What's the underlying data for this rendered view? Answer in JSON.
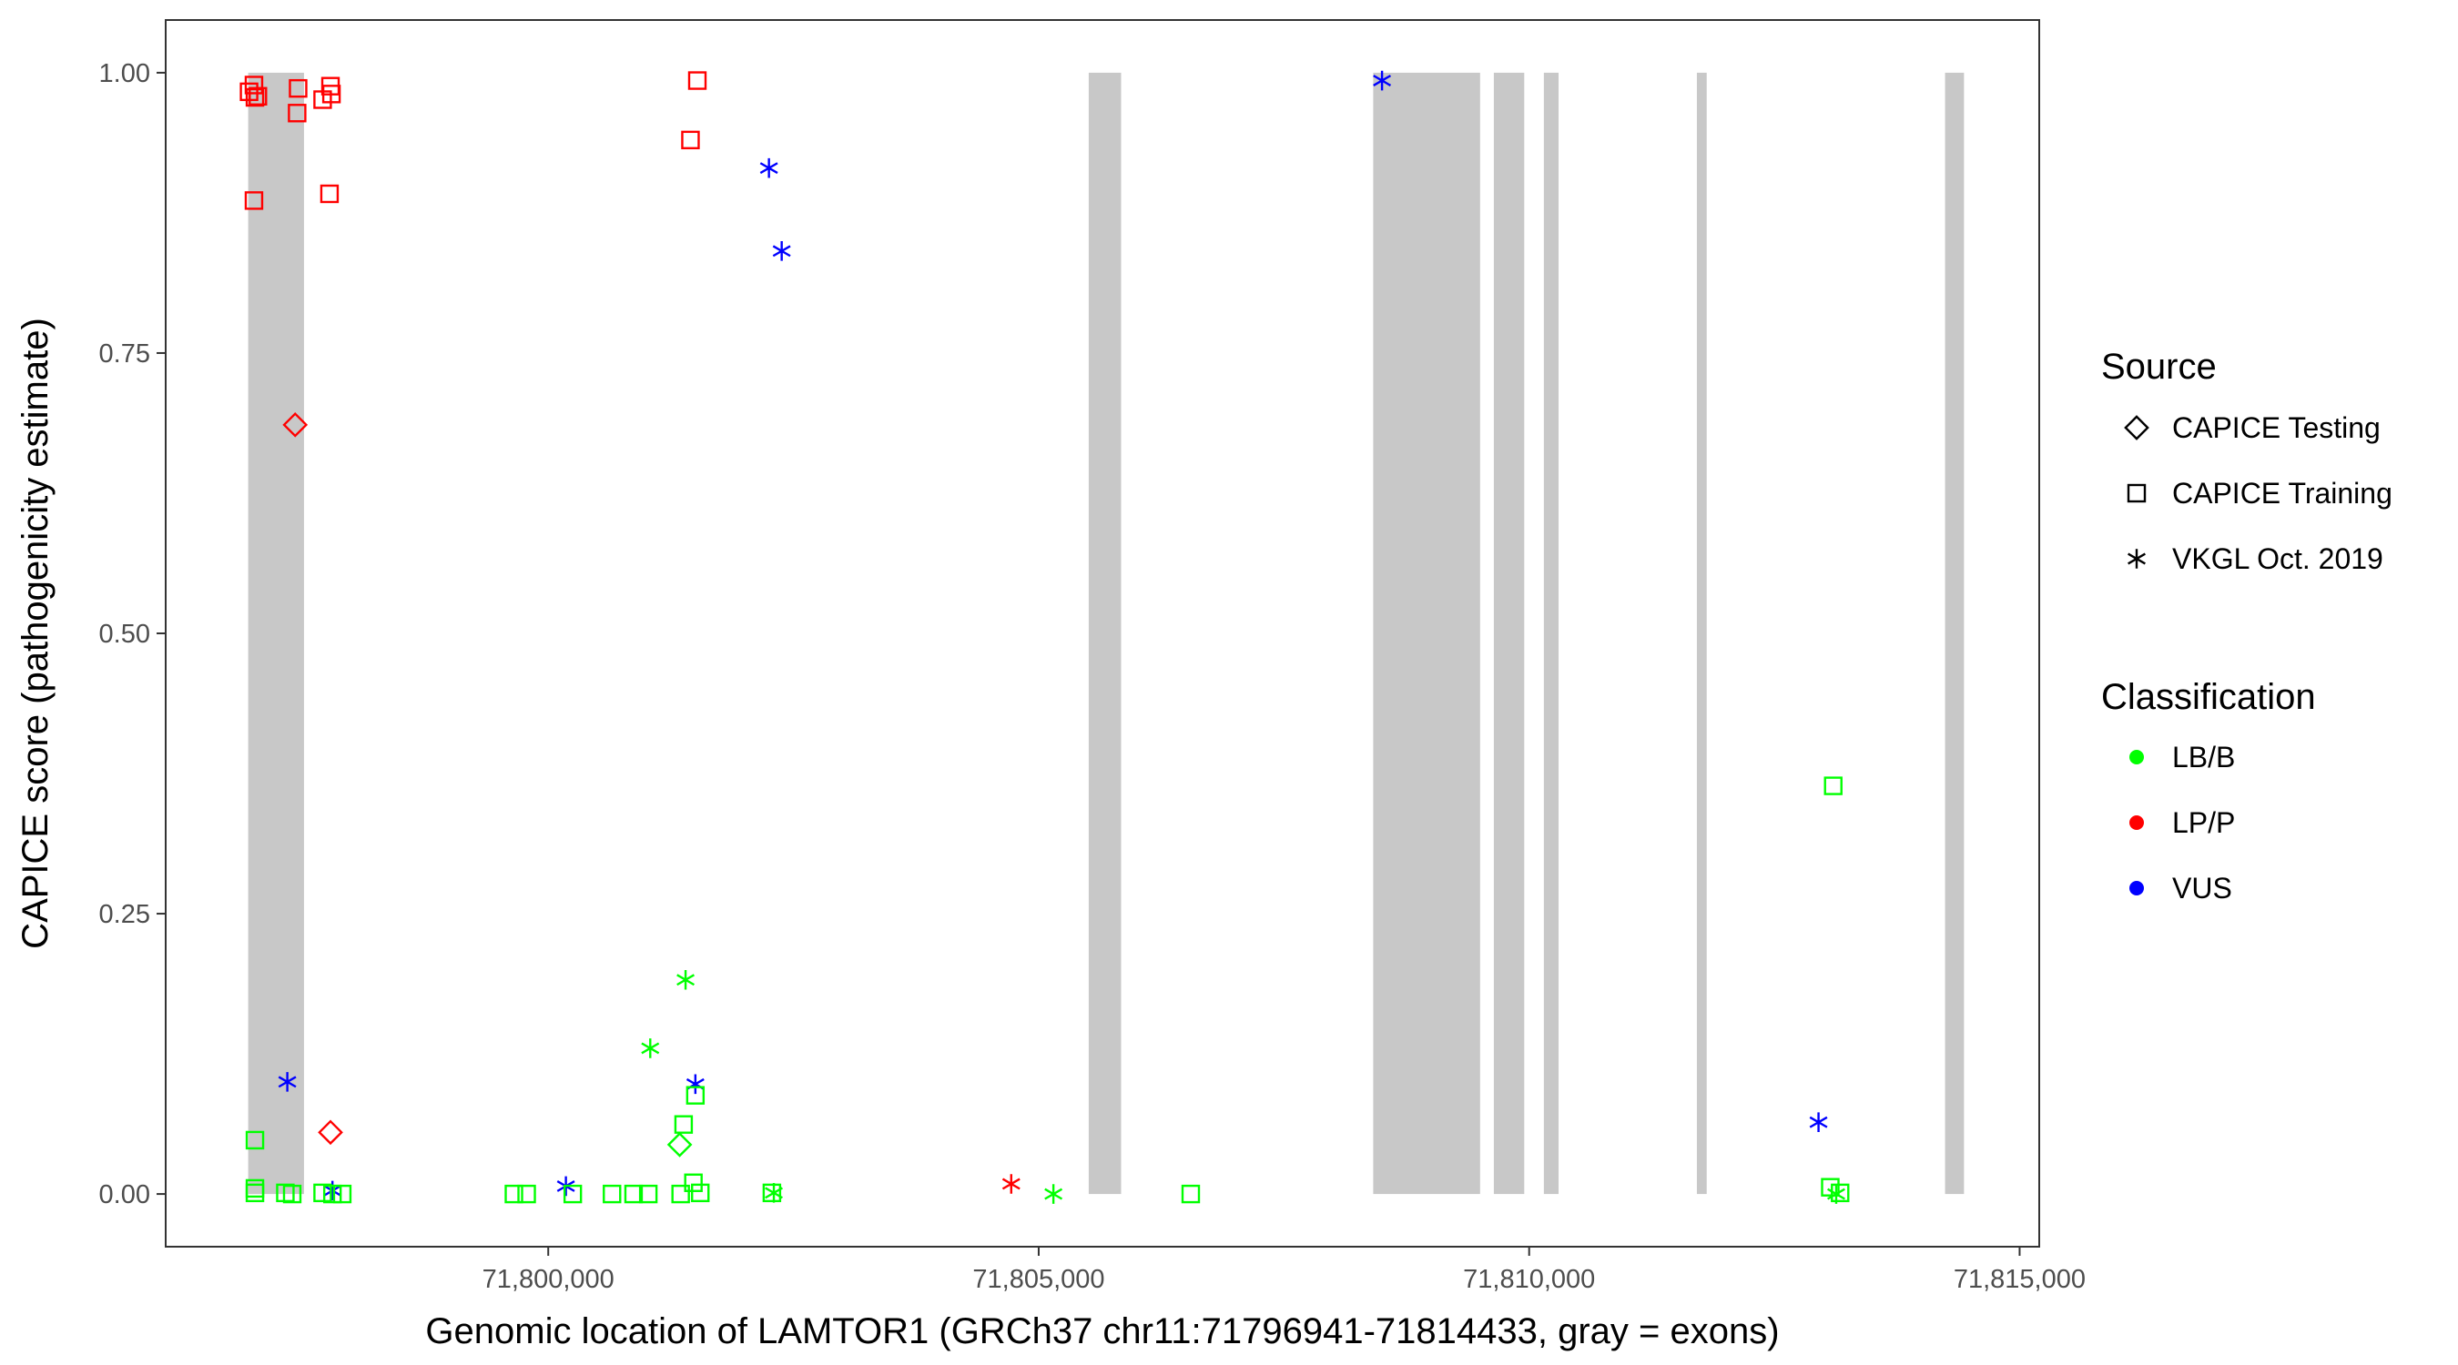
{
  "chart_data": {
    "type": "scatter",
    "title": "",
    "xlabel": "Genomic location of LAMTOR1 (GRCh37 chr11:71796941-71814433, gray = exons)",
    "ylabel": "CAPICE score (pathogenicity estimate)",
    "xlim": [
      71796100,
      71815200
    ],
    "ylim": [
      -0.047,
      1.047
    ],
    "x_ticks": [
      71800000,
      71805000,
      71810000,
      71815000
    ],
    "x_tick_labels": [
      "71,800,000",
      "71,805,000",
      "71,810,000",
      "71,815,000"
    ],
    "y_ticks": [
      0,
      0.25,
      0.5,
      0.75,
      1.0
    ],
    "y_tick_labels": [
      "0.00",
      "0.25",
      "0.50",
      "0.75",
      "1.00"
    ],
    "grid": false,
    "exon_color": "#c8c8c8",
    "exons": [
      [
        71796941,
        71797510
      ],
      [
        71805510,
        71805840
      ],
      [
        71808410,
        71809500
      ],
      [
        71809640,
        71809950
      ],
      [
        71810150,
        71810300
      ],
      [
        71811710,
        71811810
      ],
      [
        71814240,
        71814433
      ]
    ],
    "colors": {
      "LB/B": "#00ff00",
      "LP/P": "#ff0000",
      "VUS": "#0000ff"
    },
    "legend": {
      "position": "right",
      "source_title": "Source",
      "source_items": [
        {
          "label": "CAPICE Testing",
          "shape": "diamond"
        },
        {
          "label": "CAPICE Training",
          "shape": "square"
        },
        {
          "label": "VKGL Oct. 2019",
          "shape": "asterisk"
        }
      ],
      "class_title": "Classification",
      "class_items": [
        {
          "label": "LB/B",
          "color": "#00ff00"
        },
        {
          "label": "LP/P",
          "color": "#ff0000"
        },
        {
          "label": "VUS",
          "color": "#0000ff"
        }
      ]
    },
    "series": [
      {
        "source": "CAPICE Training",
        "shape": "square",
        "classification": "LP/P",
        "points": [
          [
            71796950,
            0.983
          ],
          [
            71797000,
            0.989
          ],
          [
            71797010,
            0.978
          ],
          [
            71797040,
            0.979
          ],
          [
            71797000,
            0.886
          ],
          [
            71797450,
            0.986
          ],
          [
            71797440,
            0.964
          ],
          [
            71797700,
            0.976
          ],
          [
            71797780,
            0.988
          ],
          [
            71797790,
            0.981
          ],
          [
            71797770,
            0.892
          ],
          [
            71801450,
            0.94
          ],
          [
            71801520,
            0.993
          ]
        ]
      },
      {
        "source": "CAPICE Testing",
        "shape": "diamond",
        "classification": "LP/P",
        "points": [
          [
            71797420,
            0.686
          ],
          [
            71797780,
            0.055
          ]
        ]
      },
      {
        "source": "VKGL Oct. 2019",
        "shape": "asterisk",
        "classification": "VUS",
        "points": [
          [
            71802250,
            0.915
          ],
          [
            71802380,
            0.841
          ],
          [
            71808500,
            0.993
          ],
          [
            71797340,
            0.1
          ],
          [
            71797800,
            0.003
          ],
          [
            71800180,
            0.007
          ],
          [
            71801500,
            0.098
          ],
          [
            71812950,
            0.064
          ]
        ]
      },
      {
        "source": "VKGL Oct. 2019",
        "shape": "asterisk",
        "classification": "LB/B",
        "points": [
          [
            71801400,
            0.191
          ],
          [
            71801040,
            0.13
          ],
          [
            71802300,
            0.001
          ],
          [
            71805150,
            0.0
          ],
          [
            71813130,
            0.0
          ]
        ]
      },
      {
        "source": "VKGL Oct. 2019",
        "shape": "asterisk",
        "classification": "LP/P",
        "points": [
          [
            71804720,
            0.009
          ]
        ]
      },
      {
        "source": "CAPICE Training",
        "shape": "square",
        "classification": "LB/B",
        "points": [
          [
            71797010,
            0.048
          ],
          [
            71797010,
            0.005
          ],
          [
            71797010,
            0.001
          ],
          [
            71797320,
            0.001
          ],
          [
            71797390,
            0.0
          ],
          [
            71797700,
            0.001
          ],
          [
            71797800,
            0.0
          ],
          [
            71797900,
            0.0
          ],
          [
            71799650,
            0.0
          ],
          [
            71799780,
            0.0
          ],
          [
            71800250,
            0.0
          ],
          [
            71800650,
            0.0
          ],
          [
            71800870,
            0.0
          ],
          [
            71801020,
            0.0
          ],
          [
            71801350,
            0.0
          ],
          [
            71801380,
            0.062
          ],
          [
            71801500,
            0.088
          ],
          [
            71801480,
            0.01
          ],
          [
            71801550,
            0.001
          ],
          [
            71802280,
            0.001
          ],
          [
            71806550,
            0.0
          ],
          [
            71813100,
            0.364
          ],
          [
            71813070,
            0.006
          ],
          [
            71813170,
            0.001
          ]
        ]
      },
      {
        "source": "CAPICE Testing",
        "shape": "diamond",
        "classification": "LB/B",
        "points": [
          [
            71801340,
            0.044
          ]
        ]
      }
    ]
  }
}
